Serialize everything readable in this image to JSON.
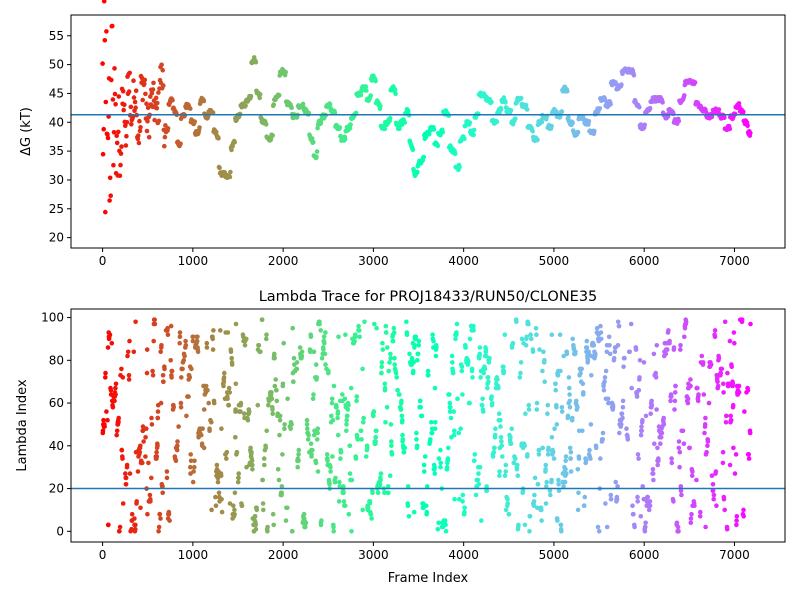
{
  "chart_data": [
    {
      "type": "scatter",
      "title": "",
      "xlabel": "",
      "ylabel": "ΔG (kT)",
      "xlim": [
        -350,
        7560
      ],
      "ylim": [
        18.2,
        58.6
      ],
      "xticks": [
        0,
        1000,
        2000,
        3000,
        4000,
        5000,
        6000,
        7000
      ],
      "yticks": [
        20,
        25,
        30,
        35,
        40,
        45,
        50,
        55
      ],
      "hline": 41.3,
      "hline_color": "#1f77b4",
      "colormap": "rainbow (red at frame 0 to violet at last frame)",
      "series_knots": [
        [
          0,
          48
        ],
        [
          10,
          36
        ],
        [
          20,
          55
        ],
        [
          30,
          22
        ],
        [
          40,
          51
        ],
        [
          55,
          33
        ],
        [
          70,
          44
        ],
        [
          85,
          29
        ],
        [
          100,
          53
        ],
        [
          120,
          38
        ],
        [
          140,
          47
        ],
        [
          160,
          31
        ],
        [
          180,
          40
        ],
        [
          200,
          35
        ],
        [
          230,
          44
        ],
        [
          260,
          37
        ],
        [
          290,
          48
        ],
        [
          320,
          41
        ],
        [
          360,
          45
        ],
        [
          400,
          38
        ],
        [
          450,
          47
        ],
        [
          500,
          40
        ],
        [
          550,
          44
        ],
        [
          600,
          42
        ],
        [
          650,
          48
        ],
        [
          700,
          38
        ],
        [
          760,
          44
        ],
        [
          800,
          42
        ],
        [
          850,
          36
        ],
        [
          880,
          41
        ],
        [
          950,
          43
        ],
        [
          1000,
          40
        ],
        [
          1050,
          38
        ],
        [
          1100,
          44
        ],
        [
          1150,
          41
        ],
        [
          1200,
          42
        ],
        [
          1260,
          38
        ],
        [
          1320,
          31
        ],
        [
          1400,
          30.5
        ],
        [
          1440,
          36
        ],
        [
          1500,
          41
        ],
        [
          1560,
          43
        ],
        [
          1620,
          44
        ],
        [
          1680,
          51
        ],
        [
          1720,
          45
        ],
        [
          1780,
          40
        ],
        [
          1850,
          37
        ],
        [
          1920,
          44
        ],
        [
          2000,
          49
        ],
        [
          2060,
          43
        ],
        [
          2130,
          41
        ],
        [
          2200,
          43
        ],
        [
          2260,
          42
        ],
        [
          2320,
          37
        ],
        [
          2360,
          34
        ],
        [
          2400,
          40
        ],
        [
          2450,
          41
        ],
        [
          2500,
          43
        ],
        [
          2550,
          42
        ],
        [
          2600,
          39
        ],
        [
          2660,
          37
        ],
        [
          2720,
          39
        ],
        [
          2780,
          41
        ],
        [
          2840,
          45
        ],
        [
          2900,
          46
        ],
        [
          2950,
          44
        ],
        [
          3000,
          48
        ],
        [
          3060,
          43
        ],
        [
          3100,
          39
        ],
        [
          3160,
          40
        ],
        [
          3220,
          46
        ],
        [
          3280,
          39
        ],
        [
          3320,
          40
        ],
        [
          3380,
          42
        ],
        [
          3420,
          36
        ],
        [
          3460,
          31
        ],
        [
          3520,
          33
        ],
        [
          3600,
          38
        ],
        [
          3650,
          39
        ],
        [
          3700,
          36
        ],
        [
          3740,
          38
        ],
        [
          3800,
          42
        ],
        [
          3880,
          35
        ],
        [
          3940,
          32
        ],
        [
          3980,
          37
        ],
        [
          4040,
          40
        ],
        [
          4100,
          38
        ],
        [
          4140,
          41
        ],
        [
          4200,
          45
        ],
        [
          4280,
          44
        ],
        [
          4340,
          40
        ],
        [
          4400,
          42
        ],
        [
          4440,
          44
        ],
        [
          4500,
          42
        ],
        [
          4550,
          40
        ],
        [
          4600,
          44
        ],
        [
          4680,
          43
        ],
        [
          4740,
          39
        ],
        [
          4800,
          37
        ],
        [
          4840,
          40
        ],
        [
          4900,
          41
        ],
        [
          4960,
          39
        ],
        [
          5000,
          42
        ],
        [
          5060,
          41
        ],
        [
          5120,
          46
        ],
        [
          5180,
          40
        ],
        [
          5240,
          38
        ],
        [
          5300,
          41
        ],
        [
          5360,
          40
        ],
        [
          5420,
          38
        ],
        [
          5480,
          42
        ],
        [
          5540,
          44
        ],
        [
          5600,
          43
        ],
        [
          5660,
          47
        ],
        [
          5720,
          46
        ],
        [
          5780,
          49
        ],
        [
          5860,
          49
        ],
        [
          5920,
          43
        ],
        [
          5980,
          39
        ],
        [
          6040,
          42
        ],
        [
          6100,
          44
        ],
        [
          6180,
          44
        ],
        [
          6240,
          41
        ],
        [
          6300,
          42
        ],
        [
          6360,
          40
        ],
        [
          6420,
          44
        ],
        [
          6480,
          47
        ],
        [
          6540,
          47
        ],
        [
          6600,
          43
        ],
        [
          6660,
          42
        ],
        [
          6720,
          41
        ],
        [
          6800,
          42
        ],
        [
          6860,
          41
        ],
        [
          6920,
          39
        ],
        [
          6980,
          41
        ],
        [
          7040,
          43
        ],
        [
          7080,
          42
        ],
        [
          7120,
          40
        ],
        [
          7180,
          38
        ]
      ]
    },
    {
      "type": "scatter",
      "title": "Lambda Trace for PROJ18433/RUN50/CLONE35",
      "xlabel": "Frame Index",
      "ylabel": "Lambda Index",
      "xlim": [
        -350,
        7560
      ],
      "ylim": [
        -5,
        104
      ],
      "xticks": [
        0,
        1000,
        2000,
        3000,
        4000,
        5000,
        6000,
        7000
      ],
      "yticks": [
        0,
        20,
        40,
        60,
        80,
        100
      ],
      "hline": 20,
      "hline_color": "#1f77b4",
      "frame_max": 7180,
      "lambda_max": 99,
      "colormap": "rainbow (red at frame 0 to violet at last frame)"
    }
  ]
}
